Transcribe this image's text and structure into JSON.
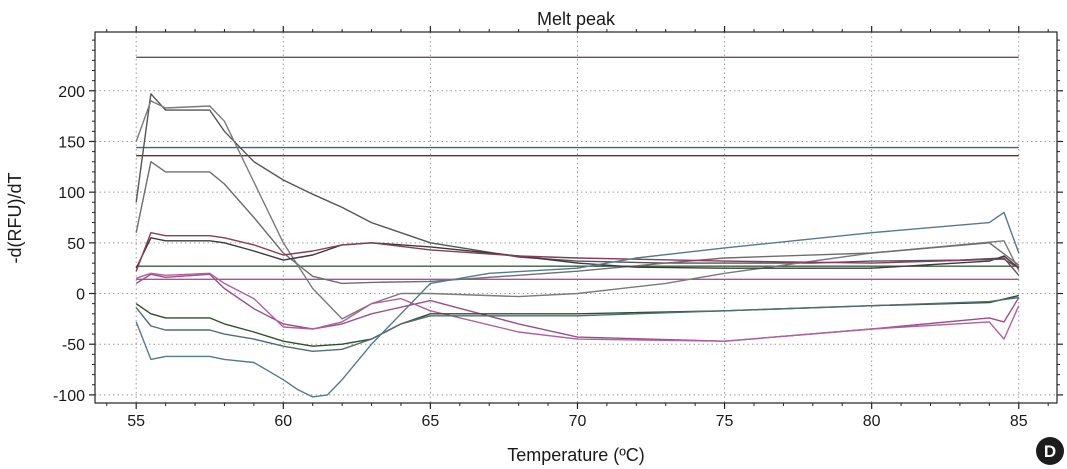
{
  "chart_data": {
    "type": "line",
    "title": "Melt peak",
    "xlabel": "Temperature (ºC)",
    "ylabel": "-d(RFU)/dT",
    "xlim": [
      53.6,
      86.3
    ],
    "ylim": [
      -108,
      258
    ],
    "x_ticks": [
      55,
      60,
      65,
      70,
      75,
      80,
      85
    ],
    "y_ticks": [
      -100,
      -50,
      0,
      50,
      100,
      150,
      200
    ],
    "x_tick_labels": [
      "55",
      "60",
      "65",
      "70",
      "75",
      "80",
      "85"
    ],
    "y_tick_labels": [
      "-100",
      "-50",
      "0",
      "50",
      "100",
      "150",
      "200"
    ],
    "grid": "dotted",
    "legend": "none",
    "panel_label": "D",
    "series": [
      {
        "color": "#6f4f4f",
        "x": [
          55,
          85
        ],
        "y": [
          233,
          233
        ]
      },
      {
        "color": "#3d6384",
        "x": [
          55,
          85
        ],
        "y": [
          144,
          144
        ]
      },
      {
        "color": "#6b2b2b",
        "x": [
          55,
          85
        ],
        "y": [
          136,
          136
        ]
      },
      {
        "color": "#3f5f3f",
        "x": [
          55,
          85
        ],
        "y": [
          27,
          27
        ]
      },
      {
        "color": "#b24aa6",
        "x": [
          55,
          85
        ],
        "y": [
          14,
          14
        ]
      },
      {
        "color": "#555555",
        "x": [
          55,
          55.5,
          56,
          57.5,
          58,
          59,
          60,
          61,
          62,
          63,
          65,
          68,
          70,
          73,
          75,
          78,
          80,
          83,
          84.5,
          85
        ],
        "y": [
          90,
          197,
          181,
          181,
          160,
          130,
          112,
          98,
          85,
          70,
          50,
          36,
          32,
          30,
          30,
          30,
          32,
          33,
          35,
          18
        ]
      },
      {
        "color": "#7a7a7a",
        "x": [
          55,
          55.5,
          56,
          57.5,
          58,
          59,
          60,
          61,
          62,
          63,
          64,
          65,
          68,
          70,
          73,
          75,
          80,
          84.5,
          85
        ],
        "y": [
          150,
          190,
          183,
          185,
          170,
          110,
          50,
          5,
          -25,
          -10,
          0,
          0,
          -3,
          0,
          10,
          20,
          40,
          52,
          23
        ]
      },
      {
        "color": "#6e6e6e",
        "x": [
          55,
          55.5,
          56,
          57.5,
          58,
          59,
          60,
          61,
          62,
          63,
          65,
          70,
          73,
          75,
          80,
          84,
          85
        ],
        "y": [
          60,
          130,
          120,
          120,
          108,
          75,
          40,
          17,
          10,
          11,
          12,
          22,
          30,
          35,
          40,
          50,
          28
        ]
      },
      {
        "color": "#3a3a3a",
        "x": [
          55,
          55.5,
          56,
          57.5,
          58,
          59,
          60,
          61,
          62,
          63,
          65,
          68,
          70,
          72,
          75,
          80,
          84,
          84.5,
          85
        ],
        "y": [
          25,
          55,
          52,
          52,
          50,
          42,
          33,
          38,
          48,
          50,
          46,
          37,
          30,
          26,
          25,
          25,
          32,
          37,
          25
        ]
      },
      {
        "color": "#8a3a5a",
        "x": [
          55,
          55.5,
          56,
          57.5,
          58,
          59,
          60,
          61,
          62,
          63,
          65,
          68,
          70,
          75,
          80,
          84.5,
          85
        ],
        "y": [
          22,
          60,
          57,
          57,
          55,
          48,
          38,
          42,
          48,
          50,
          43,
          37,
          35,
          32,
          30,
          34,
          25
        ]
      },
      {
        "color": "#9a4f8a",
        "x": [
          55,
          55.5,
          56,
          57.5,
          58,
          59,
          60,
          61,
          62,
          63,
          65,
          68,
          70,
          75,
          80,
          84,
          84.5,
          85
        ],
        "y": [
          10,
          19,
          16,
          19,
          5,
          -15,
          -30,
          -35,
          -30,
          -20,
          -7,
          -30,
          -43,
          -47,
          -35,
          -24,
          -28,
          -4
        ]
      },
      {
        "color": "#b060a0",
        "x": [
          55,
          55.5,
          56,
          57.5,
          58,
          59,
          60,
          61,
          62,
          63,
          64,
          65,
          68,
          70,
          75,
          80,
          84,
          84.5,
          85
        ],
        "y": [
          15,
          20,
          18,
          20,
          10,
          -5,
          -33,
          -35,
          -28,
          -10,
          -5,
          -17,
          -38,
          -45,
          -47,
          -35,
          -28,
          -45,
          -12
        ]
      },
      {
        "color": "#2f4f2f",
        "x": [
          55,
          55.5,
          56,
          57.5,
          58,
          59,
          60,
          61,
          62,
          63,
          64,
          65,
          68,
          70,
          75,
          80,
          84,
          85
        ],
        "y": [
          -10,
          -20,
          -24,
          -24,
          -30,
          -38,
          -47,
          -52,
          -50,
          -45,
          -30,
          -20,
          -20,
          -20,
          -17,
          -12,
          -9,
          -2
        ]
      },
      {
        "color": "#4f6f6f",
        "x": [
          55,
          55.5,
          56,
          57.5,
          58,
          59,
          60,
          61,
          62,
          63,
          64,
          65,
          68,
          70,
          75,
          80,
          84,
          85
        ],
        "y": [
          -14,
          -32,
          -36,
          -36,
          -40,
          -45,
          -52,
          -57,
          -55,
          -45,
          -30,
          -22,
          -22,
          -22,
          -17,
          -12,
          -8,
          -4
        ]
      },
      {
        "color": "#557a8f",
        "x": [
          55,
          55.5,
          56,
          57.5,
          58,
          59,
          60,
          60.5,
          61,
          61.5,
          62,
          63,
          64,
          65,
          67,
          70,
          72,
          75,
          80,
          84,
          84.5,
          85
        ],
        "y": [
          -28,
          -65,
          -62,
          -62,
          -65,
          -68,
          -85,
          -95,
          -102,
          -100,
          -85,
          -50,
          -20,
          10,
          20,
          25,
          35,
          45,
          60,
          70,
          80,
          40
        ]
      }
    ]
  }
}
